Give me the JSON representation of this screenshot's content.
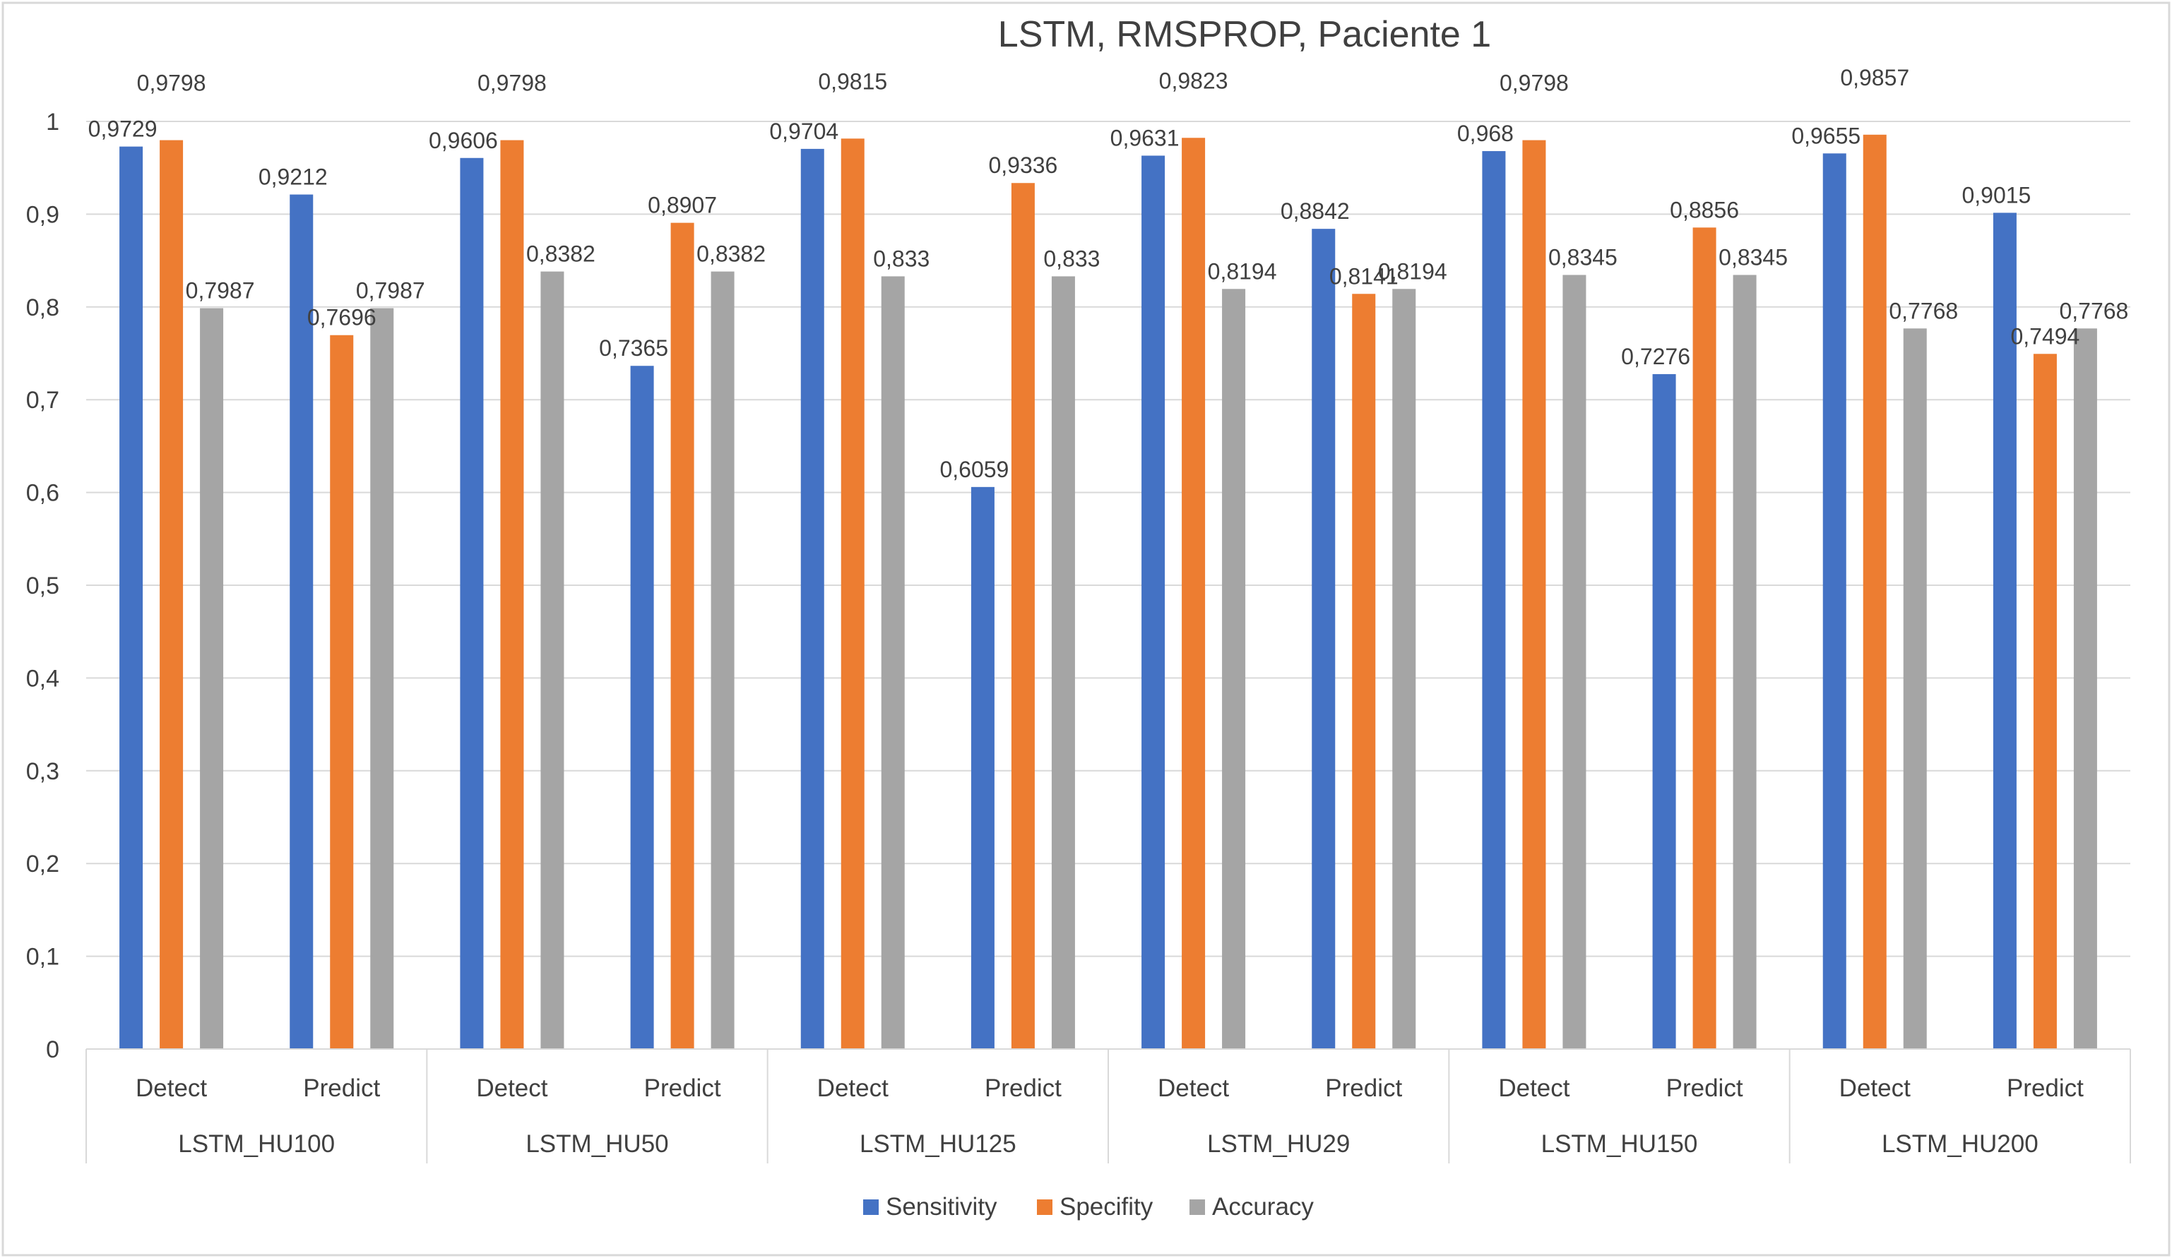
{
  "chart_data": {
    "type": "bar",
    "title": "LSTM, RMSPROP, Paciente 1",
    "xlabel": "",
    "ylabel": "",
    "ylim": [
      0,
      1
    ],
    "y_ticks": [
      "0",
      "0,1",
      "0,2",
      "0,3",
      "0,4",
      "0,5",
      "0,6",
      "0,7",
      "0,8",
      "0,9",
      "1"
    ],
    "grid": true,
    "legend_position": "bottom",
    "decimal_separator": ",",
    "groups": [
      "LSTM_HU100",
      "LSTM_HU50",
      "LSTM_HU125",
      "LSTM_HU29",
      "LSTM_HU150",
      "LSTM_HU200"
    ],
    "subcategories": [
      "Detect",
      "Predict"
    ],
    "categories": [
      "LSTM_HU100 Detect",
      "LSTM_HU100 Predict",
      "LSTM_HU50 Detect",
      "LSTM_HU50 Predict",
      "LSTM_HU125 Detect",
      "LSTM_HU125 Predict",
      "LSTM_HU29 Detect",
      "LSTM_HU29 Predict",
      "LSTM_HU150 Detect",
      "LSTM_HU150 Predict",
      "LSTM_HU200 Detect",
      "LSTM_HU200 Predict"
    ],
    "series": [
      {
        "name": "Sensitivity",
        "color": "#4472C4",
        "values": [
          0.9729,
          0.9212,
          0.9606,
          0.7365,
          0.9704,
          0.6059,
          0.9631,
          0.8842,
          0.968,
          0.7276,
          0.9655,
          0.9015
        ]
      },
      {
        "name": "Specifity",
        "color": "#ED7D31",
        "values": [
          0.9798,
          0.7696,
          0.9798,
          0.8907,
          0.9815,
          0.9336,
          0.9823,
          0.8141,
          0.9798,
          0.8856,
          0.9857,
          0.7494
        ]
      },
      {
        "name": "Accuracy",
        "color": "#A5A5A5",
        "values": [
          0.7987,
          0.7987,
          0.8382,
          0.8382,
          0.833,
          0.833,
          0.8194,
          0.8194,
          0.8345,
          0.8345,
          0.7768,
          0.7768
        ]
      }
    ]
  }
}
